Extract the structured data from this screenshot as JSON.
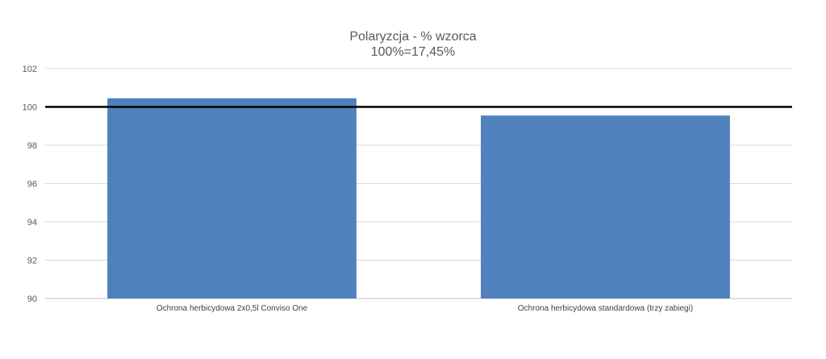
{
  "chart_data": {
    "type": "bar",
    "title": "Polaryzcja - % wzorca",
    "subtitle": "100%=17,45%",
    "categories": [
      "Ochrona herbicydowa 2x0,5l Conviso One",
      "Ochrona herbicydowa standardowa (trzy zabiegi)"
    ],
    "values": [
      100.45,
      99.55
    ],
    "ylim": [
      90,
      102
    ],
    "yticks": [
      "90",
      "92",
      "94",
      "96",
      "98",
      "100",
      "102"
    ],
    "ytick_values": [
      90,
      92,
      94,
      96,
      98,
      100,
      102
    ],
    "reference_line": 100,
    "grid": true,
    "legend": "none",
    "colors": {
      "bar": "#4f81bd",
      "reference": "#000000",
      "grid": "#d9d9d9",
      "text": "#595959"
    }
  }
}
